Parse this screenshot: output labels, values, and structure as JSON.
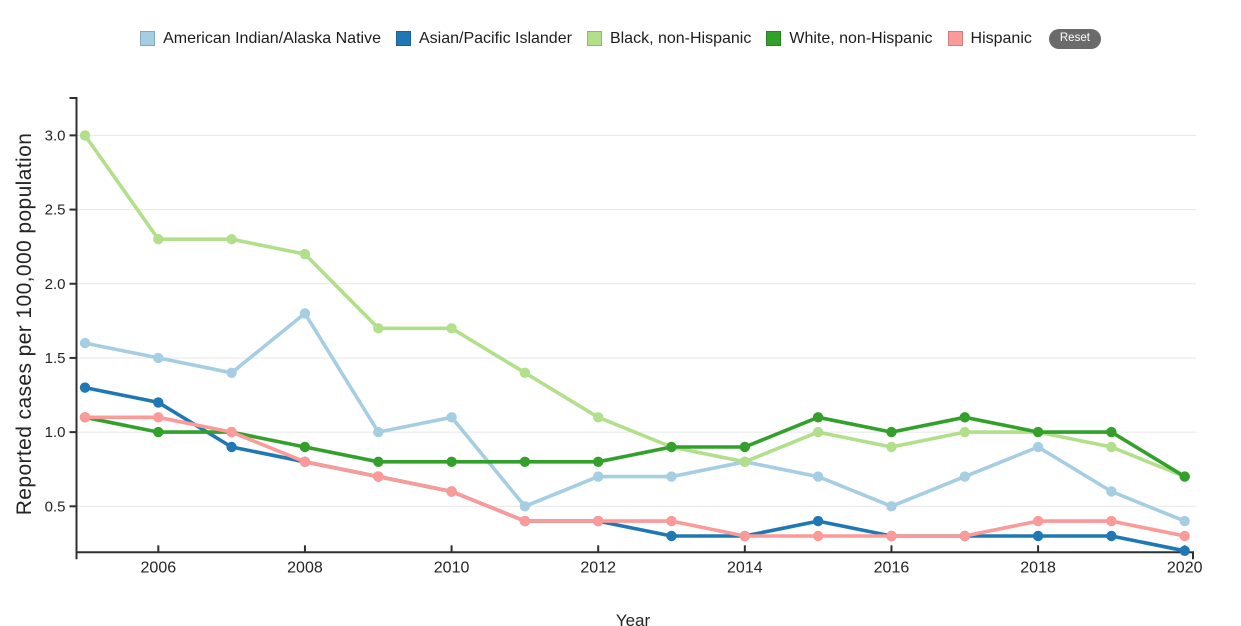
{
  "legend": {
    "items": [
      {
        "label": "American Indian/Alaska Native",
        "color": "#a6cee3"
      },
      {
        "label": "Asian/Pacific Islander",
        "color": "#1f78b4"
      },
      {
        "label": "Black, non-Hispanic",
        "color": "#b2df8a"
      },
      {
        "label": "White, non-Hispanic",
        "color": "#33a02c"
      },
      {
        "label": "Hispanic",
        "color": "#fb9a99"
      }
    ],
    "reset_label": "Reset"
  },
  "chart_data": {
    "type": "line",
    "title": "",
    "xlabel": "Year",
    "ylabel": "Reported cases per 100,000 population",
    "x": [
      2005,
      2006,
      2007,
      2008,
      2009,
      2010,
      2011,
      2012,
      2013,
      2014,
      2015,
      2016,
      2017,
      2018,
      2019,
      2020
    ],
    "series": [
      {
        "name": "American Indian/Alaska Native",
        "color": "#a6cee3",
        "values": [
          1.6,
          1.5,
          1.4,
          1.8,
          1.0,
          1.1,
          0.5,
          0.7,
          0.7,
          0.8,
          0.7,
          0.5,
          0.7,
          0.9,
          0.6,
          0.4
        ]
      },
      {
        "name": "Asian/Pacific Islander",
        "color": "#1f78b4",
        "values": [
          1.3,
          1.2,
          0.9,
          0.8,
          0.7,
          0.6,
          0.4,
          0.4,
          0.3,
          0.3,
          0.4,
          0.3,
          0.3,
          0.3,
          0.3,
          0.2
        ]
      },
      {
        "name": "Black, non-Hispanic",
        "color": "#b2df8a",
        "values": [
          3.0,
          2.3,
          2.3,
          2.2,
          1.7,
          1.7,
          1.4,
          1.1,
          0.9,
          0.8,
          1.0,
          0.9,
          1.0,
          1.0,
          0.9,
          0.7
        ]
      },
      {
        "name": "White, non-Hispanic",
        "color": "#33a02c",
        "values": [
          1.1,
          1.0,
          1.0,
          0.9,
          0.8,
          0.8,
          0.8,
          0.8,
          0.9,
          0.9,
          1.1,
          1.0,
          1.1,
          1.0,
          1.0,
          0.7
        ]
      },
      {
        "name": "Hispanic",
        "color": "#fb9a99",
        "values": [
          1.1,
          1.1,
          1.0,
          0.8,
          0.7,
          0.6,
          0.4,
          0.4,
          0.4,
          0.3,
          0.3,
          0.3,
          0.3,
          0.4,
          0.4,
          0.3
        ]
      }
    ],
    "xticks": [
      2006,
      2008,
      2010,
      2012,
      2014,
      2016,
      2018,
      2020
    ],
    "yticks": [
      0.5,
      1.0,
      1.5,
      2.0,
      2.5,
      3.0
    ],
    "xlim": [
      2004.884,
      2020.113
    ],
    "ylim": [
      0.19,
      3.252
    ],
    "grid": "horizontal",
    "legend_position": "top"
  }
}
